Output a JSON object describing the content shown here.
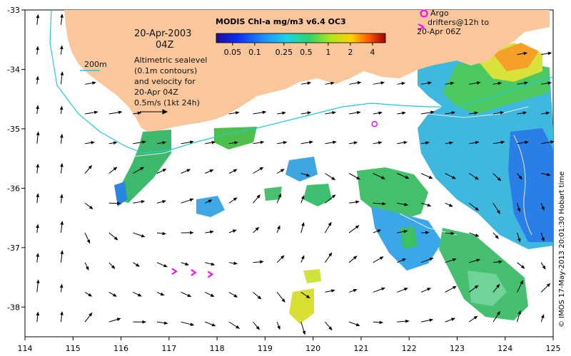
{
  "map": {
    "lon_range": [
      114,
      125
    ],
    "lat_range": [
      -38.5,
      -33
    ],
    "x_tick_labels": [
      "114",
      "115",
      "116",
      "117",
      "118",
      "119",
      "120",
      "121",
      "122",
      "123",
      "124",
      "125"
    ],
    "y_tick_labels": [
      "-33",
      "-34",
      "-35",
      "-36",
      "-37",
      "-38"
    ],
    "date_line": "20-Apr-2003",
    "time_line": "04Z",
    "isobath_label": "200m",
    "altimetry_note": [
      "Altimetric sealevel",
      "(0.1m contours)",
      "and velocity for",
      "20-Apr 04Z"
    ],
    "velocity_scale_label": "0.5m/s (1kt 24h)",
    "colorbar": {
      "title": "MODIS Chl-a mg/m3 v6.4 OC3",
      "ticks": [
        "0.05",
        "0.1",
        "0.25",
        "0.5",
        "1",
        "2",
        "4"
      ],
      "tick_values": [
        0.05,
        0.1,
        0.25,
        0.5,
        1,
        2,
        4
      ],
      "range": [
        0.03,
        6
      ]
    },
    "argo_legend": [
      "Argo",
      "drifters@12h to",
      "20-Apr 06Z"
    ],
    "credit": "© IMOS 17-May-2013 20:01:30 Hobart time",
    "colors": {
      "land": "#f9c79b",
      "isobath": "#22c8dc",
      "argo": "#ff00ff",
      "ssh_contour": "#e8e8e8"
    },
    "argo_float_positions": [
      [
        121.28,
        -34.92
      ]
    ],
    "drifter_arrow_positions": [
      [
        117.15,
        -37.4
      ],
      [
        117.55,
        -37.42
      ],
      [
        117.9,
        -37.45
      ]
    ]
  }
}
